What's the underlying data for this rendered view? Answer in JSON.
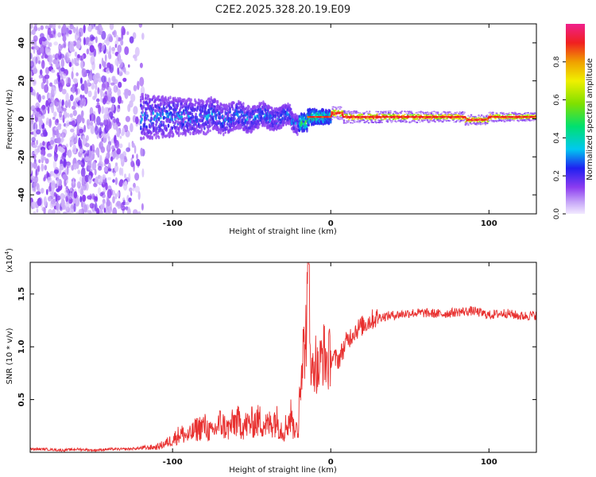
{
  "title": "C2E2.2025.328.20.19.E09",
  "chart_data": [
    {
      "type": "heatmap",
      "name": "spectrogram",
      "xlabel": "Height of straight line (km)",
      "ylabel": "Frequency (Hz)",
      "xlim": [
        -190,
        130
      ],
      "ylim": [
        -50,
        50
      ],
      "xticks": [
        -100,
        0,
        100
      ],
      "yticks": [
        -40,
        -20,
        0,
        20,
        40
      ],
      "colorbar": {
        "label": "Normalized spectral amplitude",
        "range": [
          0,
          1
        ],
        "ticks": [
          "0.0",
          "0.2",
          "0.4",
          "0.6",
          "0.8"
        ]
      },
      "description_points": {
        "noise_region_x": [
          -190,
          -115
        ],
        "band_center_hz": 1,
        "band_halfwidth_hz_at_-100": 6,
        "band_halfwidth_hz_at_0": 2,
        "band_halfwidth_hz_at_100": 1.5
      }
    },
    {
      "type": "line",
      "name": "snr",
      "xlabel": "Height of straight line (km)",
      "ylabel": "SNR (10 * v/v)",
      "yscale_label": "(x10",
      "yscale_exponent": "4",
      "xlim": [
        -190,
        130
      ],
      "ylim": [
        0,
        1.8
      ],
      "xticks": [
        -100,
        0,
        100
      ],
      "yticks": [
        0.5,
        1.0,
        1.5
      ],
      "ytick_labels": [
        "0.5",
        "1.0",
        "1.5"
      ],
      "color": "#e8302f",
      "series": [
        {
          "name": "SNR",
          "x": [
            -190,
            -180,
            -170,
            -160,
            -150,
            -140,
            -130,
            -120,
            -110,
            -105,
            -100,
            -95,
            -90,
            -85,
            -80,
            -75,
            -70,
            -65,
            -60,
            -55,
            -50,
            -45,
            -40,
            -35,
            -30,
            -25,
            -22,
            -20,
            -18,
            -16,
            -15,
            -14,
            -13,
            -12,
            -10,
            -8,
            -5,
            -2,
            0,
            5,
            10,
            15,
            20,
            25,
            30,
            40,
            50,
            60,
            70,
            80,
            90,
            100,
            110,
            120,
            130
          ],
          "y": [
            0.03,
            0.03,
            0.02,
            0.03,
            0.02,
            0.03,
            0.03,
            0.04,
            0.05,
            0.08,
            0.12,
            0.18,
            0.15,
            0.22,
            0.25,
            0.18,
            0.28,
            0.22,
            0.3,
            0.25,
            0.28,
            0.3,
            0.25,
            0.32,
            0.2,
            0.35,
            0.15,
            0.6,
            0.9,
            1.05,
            1.35,
            1.78,
            1.2,
            0.7,
            0.9,
            0.75,
            0.95,
            0.85,
            0.9,
            0.88,
            1.05,
            1.15,
            1.2,
            1.25,
            1.28,
            1.3,
            1.32,
            1.32,
            1.31,
            1.33,
            1.34,
            1.3,
            1.32,
            1.29,
            1.3
          ]
        }
      ]
    }
  ]
}
